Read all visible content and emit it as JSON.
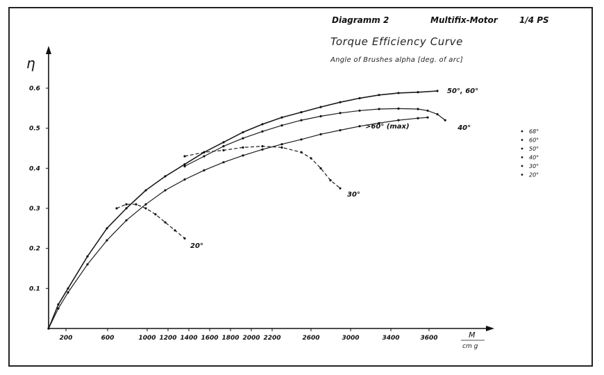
{
  "header": {
    "diagram": "Diagramm 2",
    "motor": "Multifix-Motor",
    "power": "1/4 PS",
    "title": "Torque Efficiency Curve",
    "subtitle": "Angle of Brushes alpha [deg. of arc]"
  },
  "chart_data": {
    "type": "line",
    "title": "Torque Efficiency Curve",
    "subtitle": "Angle of Brushes alpha [deg. of arc]",
    "xlabel": "M",
    "xunit": "cm g",
    "ylabel": "η",
    "xlim": [
      0,
      4400
    ],
    "ylim": [
      0,
      0.6
    ],
    "x_ticks": [
      "200",
      "600",
      "1000",
      "1200",
      "1400",
      "1600",
      "1800",
      "2000",
      "2200",
      "2600",
      "3000",
      "3400",
      "3600"
    ],
    "y_ticks": [
      "0.1",
      "0.2",
      "0.3",
      "0.4",
      "0.5",
      "0.6"
    ],
    "grid": false,
    "legend_position": "right",
    "legend": [
      "68°",
      "60°",
      "50°",
      "40°",
      "30°",
      "20°"
    ],
    "series": [
      {
        "name": "50°, 60°",
        "label": "50°, 60°",
        "style": "solid",
        "x": [
          0,
          100,
          200,
          400,
          600,
          800,
          1000,
          1200,
          1400,
          1600,
          1800,
          2000,
          2200,
          2400,
          2600,
          2800,
          3000,
          3200,
          3400,
          3600,
          3800,
          4000
        ],
        "y": [
          0.0,
          0.06,
          0.1,
          0.18,
          0.25,
          0.3,
          0.345,
          0.38,
          0.41,
          0.44,
          0.465,
          0.49,
          0.51,
          0.527,
          0.54,
          0.553,
          0.565,
          0.575,
          0.583,
          0.588,
          0.59,
          0.593
        ]
      },
      {
        "name": "40°",
        "label": "40°",
        "style": "solid",
        "x": [
          1400,
          1600,
          1800,
          2000,
          2200,
          2400,
          2600,
          2800,
          3000,
          3200,
          3400,
          3600,
          3800,
          3900,
          4000,
          4080
        ],
        "y": [
          0.405,
          0.43,
          0.455,
          0.475,
          0.492,
          0.507,
          0.52,
          0.53,
          0.538,
          0.544,
          0.548,
          0.549,
          0.548,
          0.544,
          0.535,
          0.52
        ]
      },
      {
        "name": ">60° (max)",
        "label": ">60° (max)",
        "style": "solid",
        "x": [
          0,
          100,
          200,
          400,
          600,
          800,
          1000,
          1200,
          1400,
          1600,
          1800,
          2000,
          2200,
          2400,
          2600,
          2800,
          3000,
          3200,
          3400,
          3600,
          3800,
          3900
        ],
        "y": [
          0.0,
          0.05,
          0.09,
          0.16,
          0.22,
          0.27,
          0.31,
          0.345,
          0.372,
          0.395,
          0.415,
          0.432,
          0.447,
          0.46,
          0.472,
          0.485,
          0.495,
          0.505,
          0.513,
          0.52,
          0.525,
          0.527
        ]
      },
      {
        "name": "30°",
        "label": "30°",
        "style": "dashed",
        "x": [
          1400,
          1600,
          1800,
          2000,
          2200,
          2400,
          2600,
          2700,
          2800,
          2900,
          3000
        ],
        "y": [
          0.43,
          0.44,
          0.445,
          0.452,
          0.455,
          0.452,
          0.44,
          0.425,
          0.4,
          0.37,
          0.35
        ]
      },
      {
        "name": "20°",
        "label": "20°",
        "style": "dashed",
        "x": [
          700,
          800,
          900,
          1000,
          1100,
          1200,
          1300,
          1400
        ],
        "y": [
          0.3,
          0.31,
          0.31,
          0.3,
          0.285,
          0.265,
          0.245,
          0.225
        ]
      }
    ]
  }
}
